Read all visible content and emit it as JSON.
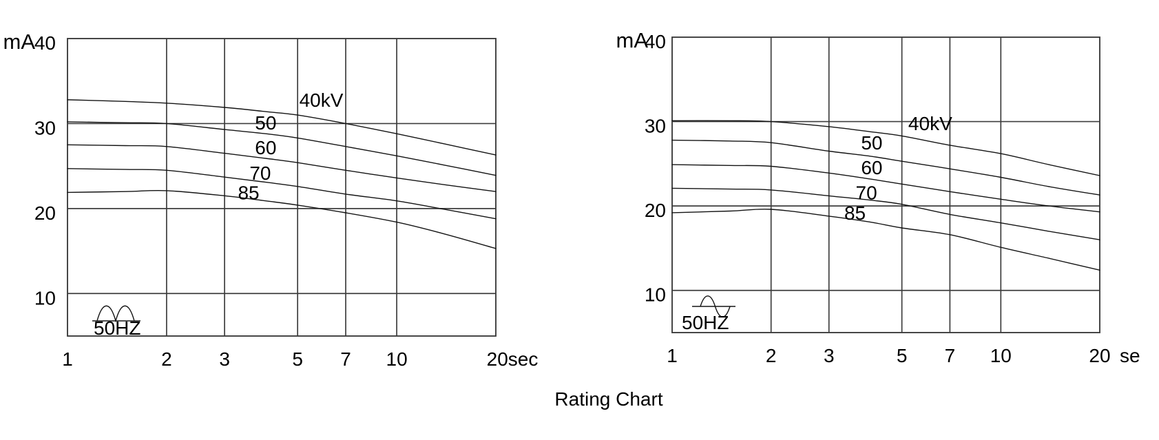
{
  "title": "Rating Chart",
  "colors": {
    "background": "#ffffff",
    "grid": "#3d3d3d",
    "curve": "#141414",
    "text": "#000000"
  },
  "chart_data": [
    {
      "id": "left",
      "type": "line",
      "title": "",
      "xlabel": "sec",
      "ylabel": "mA",
      "x_scale": "log",
      "xlim": [
        1,
        20
      ],
      "ylim": [
        5,
        40
      ],
      "x_ticks": [
        1,
        2,
        3,
        5,
        7,
        10,
        20
      ],
      "x_tick_labels": [
        "1",
        "2",
        "3",
        "5",
        "7",
        "10",
        "20sec"
      ],
      "y_ticks": [
        10,
        20,
        30,
        40
      ],
      "y_tick_labels": [
        "10",
        "20",
        "30",
        "40"
      ],
      "y_axis_unit": "mA",
      "x_suffix": "",
      "freq_label": "50HZ",
      "waveform": "full-wave-rectified",
      "grid": true,
      "x": [
        1,
        1.5,
        2,
        3,
        4,
        5,
        7,
        10,
        14,
        20
      ],
      "series": [
        {
          "name": "40kV",
          "values": [
            32.8,
            32.6,
            32.4,
            31.9,
            31.4,
            31.0,
            30.0,
            28.8,
            27.6,
            26.3
          ]
        },
        {
          "name": "50",
          "values": [
            30.2,
            30.1,
            30.0,
            29.3,
            28.8,
            28.3,
            27.3,
            26.2,
            25.1,
            23.9
          ]
        },
        {
          "name": "60",
          "values": [
            27.5,
            27.4,
            27.3,
            26.5,
            25.9,
            25.4,
            24.5,
            23.6,
            22.8,
            22.0
          ]
        },
        {
          "name": "70",
          "values": [
            24.7,
            24.6,
            24.5,
            23.7,
            23.1,
            22.6,
            21.7,
            20.9,
            19.9,
            18.8
          ]
        },
        {
          "name": "85",
          "values": [
            21.9,
            22.0,
            22.1,
            21.5,
            20.9,
            20.4,
            19.5,
            18.4,
            17.0,
            15.3
          ]
        }
      ],
      "curve_labels": [
        {
          "text": "40kV",
          "x": 5.9,
          "y": 32.8
        },
        {
          "text": "50",
          "x": 4.0,
          "y": 30.1
        },
        {
          "text": "60",
          "x": 4.0,
          "y": 27.2
        },
        {
          "text": "70",
          "x": 3.85,
          "y": 24.2
        },
        {
          "text": "85",
          "x": 3.55,
          "y": 21.9
        }
      ]
    },
    {
      "id": "right",
      "type": "line",
      "title": "",
      "xlabel": "sec",
      "ylabel": "mA",
      "x_scale": "log",
      "xlim": [
        1,
        20
      ],
      "ylim": [
        5,
        40
      ],
      "x_ticks": [
        1,
        2,
        3,
        5,
        7,
        10,
        20
      ],
      "x_tick_labels": [
        "1",
        "2",
        "3",
        "5",
        "7",
        "10",
        "20"
      ],
      "y_ticks": [
        10,
        20,
        30,
        40
      ],
      "y_tick_labels": [
        "10",
        "20",
        "30",
        "40"
      ],
      "y_axis_unit": "mA",
      "x_suffix": "se",
      "freq_label": "50HZ",
      "waveform": "sine",
      "grid": true,
      "x": [
        1,
        1.5,
        2,
        3,
        4,
        5,
        7,
        10,
        14,
        20
      ],
      "series": [
        {
          "name": "40kV",
          "values": [
            30.1,
            30.1,
            30.0,
            29.4,
            28.8,
            28.3,
            27.2,
            26.2,
            24.9,
            23.6
          ]
        },
        {
          "name": "50",
          "values": [
            27.8,
            27.7,
            27.5,
            26.5,
            25.9,
            25.3,
            24.4,
            23.4,
            22.3,
            21.3
          ]
        },
        {
          "name": "60",
          "values": [
            24.9,
            24.8,
            24.7,
            23.9,
            23.2,
            22.6,
            21.7,
            20.8,
            20.0,
            19.3
          ]
        },
        {
          "name": "70",
          "values": [
            22.1,
            22.0,
            21.9,
            21.2,
            20.7,
            20.2,
            19.0,
            18.0,
            17.0,
            16.0
          ]
        },
        {
          "name": "85",
          "values": [
            19.2,
            19.4,
            19.6,
            18.8,
            18.1,
            17.4,
            16.6,
            15.1,
            13.8,
            12.4
          ]
        }
      ],
      "curve_labels": [
        {
          "text": "40kV",
          "x": 6.1,
          "y": 29.8
        },
        {
          "text": "50",
          "x": 4.05,
          "y": 27.5
        },
        {
          "text": "60",
          "x": 4.05,
          "y": 24.6
        },
        {
          "text": "70",
          "x": 3.9,
          "y": 21.6
        },
        {
          "text": "85",
          "x": 3.6,
          "y": 19.2
        }
      ]
    }
  ]
}
